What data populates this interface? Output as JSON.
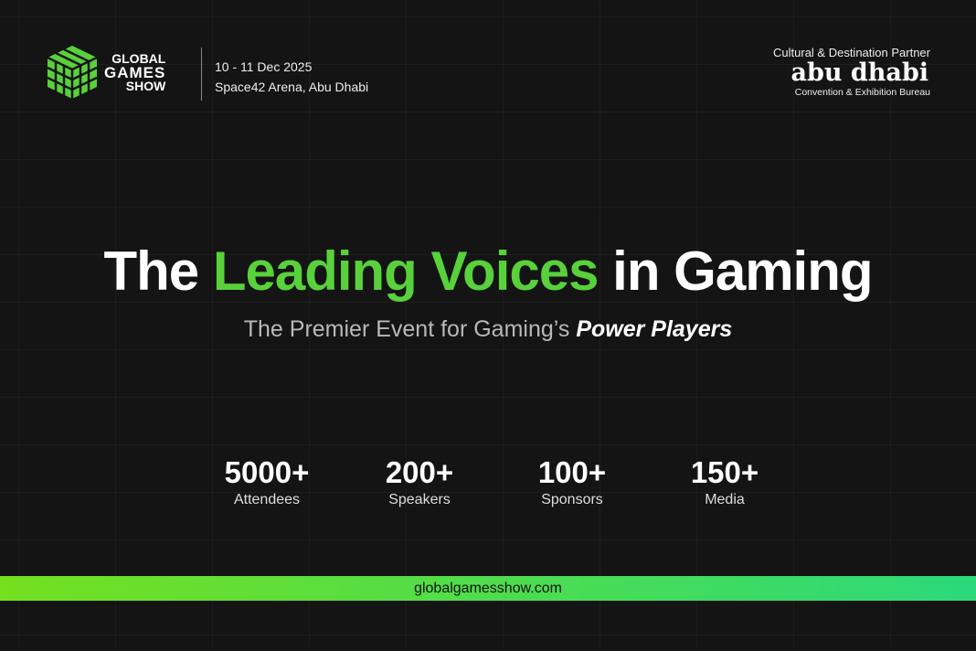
{
  "brand": {
    "line1": "GLOBAL",
    "line2": "GAMES",
    "line3": "SHOW",
    "accent": "#58d13b"
  },
  "event": {
    "dates": "10 - 11 Dec 2025",
    "venue": "Space42 Arena, Abu Dhabi"
  },
  "partner": {
    "label": "Cultural & Destination Partner",
    "name": "abu dhabi",
    "subtitle": "Convention & Exhibition Bureau"
  },
  "headline": {
    "part1": "The ",
    "highlight": "Leading Voices",
    "part2": " in Gaming"
  },
  "tagline": {
    "plain": "The Premier Event for Gaming’s ",
    "bold": "Power Players"
  },
  "stats": [
    {
      "value": "5000+",
      "label": "Attendees"
    },
    {
      "value": "200+",
      "label": "Speakers"
    },
    {
      "value": "100+",
      "label": "Sponsors"
    },
    {
      "value": "150+",
      "label": "Media"
    }
  ],
  "footer": {
    "url": "globalgamesshow.com",
    "gradient": [
      "#74e01e",
      "#2bd97b"
    ]
  }
}
